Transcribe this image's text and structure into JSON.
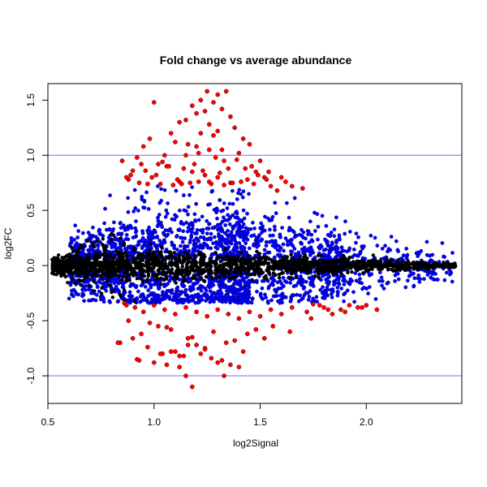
{
  "chart_data": {
    "type": "scatter",
    "title": "Fold change vs average abundance",
    "xlabel": "log2Signal",
    "ylabel": "log2FC",
    "xlim": [
      0.5,
      2.45
    ],
    "ylim": [
      -1.25,
      1.65
    ],
    "x_ticks": [
      "0.5",
      "1.0",
      "1.5",
      "2.0"
    ],
    "y_ticks": [
      "-1.0",
      "-0.5",
      "0.0",
      "0.5",
      "1.0",
      "1.5"
    ],
    "reference_lines": [
      1.0,
      -1.0
    ],
    "reference_line_color": "#6f6fff",
    "grid": false,
    "legend": "none",
    "series_colors": {
      "black": "#000000",
      "blue": "#0000ff",
      "red": "#ff0000"
    },
    "series": [
      {
        "color": "#ff0000",
        "x": [
          1.25,
          1.34,
          1.3,
          1.22,
          1.28,
          1.18,
          1.24,
          1.32,
          1.36,
          1.2,
          1.15,
          1.12,
          1.26,
          1.38,
          1.3,
          1.22,
          1.28,
          1.42,
          1.08,
          1.1,
          1.16,
          1.2,
          1.26,
          1.32,
          1.4,
          1.45,
          1.5,
          1.05,
          1.0,
          0.98,
          0.95,
          0.92,
          1.02,
          1.06,
          1.14,
          1.18,
          1.24,
          1.3,
          1.35,
          1.44,
          1.48,
          1.52,
          0.9,
          0.88,
          1.12,
          1.26,
          1.36,
          0.85,
          0.87,
          0.93,
          0.97,
          1.03,
          1.09,
          1.13,
          1.17,
          1.21,
          1.27,
          1.33,
          1.37,
          1.41,
          1.47,
          1.53,
          1.55,
          1.58,
          0.99,
          1.07,
          1.19,
          1.29,
          1.39,
          0.94,
          1.01,
          1.11,
          1.23,
          1.31,
          1.43,
          1.49,
          0.89,
          0.96,
          1.04,
          1.15,
          1.21,
          1.33,
          1.46,
          1.54,
          1.6,
          1.62,
          1.65,
          1.7,
          1.75,
          1.8,
          1.82,
          1.9,
          1.96,
          2.0,
          2.05,
          0.86,
          0.91,
          0.95,
          1.0,
          1.05,
          1.1,
          1.15,
          1.2,
          1.25,
          1.3,
          1.35,
          1.4,
          1.45,
          1.5,
          1.55,
          1.6,
          1.65,
          1.72,
          1.78,
          1.84,
          1.88,
          1.92,
          1.98,
          0.84,
          0.94,
          1.02,
          1.08,
          1.18,
          1.28,
          1.38,
          1.48,
          0.88,
          0.98,
          1.06,
          1.16,
          1.24,
          1.34,
          1.44,
          1.56,
          0.92,
          1.0,
          1.12,
          1.22,
          1.32,
          1.42,
          1.52,
          1.64,
          1.74,
          0.9,
          1.04,
          1.1,
          1.2,
          1.3,
          1.36,
          1.4,
          1.15,
          1.18,
          1.33,
          1.12,
          1.27,
          1.06,
          0.97,
          0.93,
          1.16,
          1.24,
          1.03,
          1.14,
          1.08,
          0.83,
          0.87
        ],
        "y": [
          1.58,
          1.58,
          1.55,
          1.5,
          1.48,
          1.45,
          1.4,
          1.42,
          1.35,
          1.38,
          1.32,
          1.3,
          1.28,
          1.25,
          1.22,
          1.2,
          1.18,
          1.15,
          1.2,
          1.12,
          1.1,
          1.08,
          1.05,
          1.05,
          1.02,
          1.1,
          0.95,
          1.0,
          1.48,
          1.15,
          1.08,
          0.98,
          0.92,
          0.9,
          0.88,
          0.85,
          0.82,
          0.8,
          0.88,
          0.78,
          0.85,
          0.8,
          0.86,
          0.78,
          0.76,
          0.76,
          0.75,
          0.95,
          0.8,
          0.75,
          0.74,
          0.74,
          0.73,
          0.74,
          0.75,
          0.76,
          0.74,
          0.73,
          0.75,
          0.76,
          0.74,
          0.78,
          0.72,
          0.68,
          0.8,
          0.9,
          0.92,
          0.98,
          0.96,
          0.92,
          0.82,
          0.78,
          0.86,
          0.84,
          0.88,
          0.82,
          0.82,
          0.86,
          0.94,
          1.0,
          1.02,
          0.95,
          0.9,
          0.85,
          0.8,
          0.76,
          0.72,
          0.7,
          -0.35,
          -0.38,
          -0.4,
          -0.42,
          -0.38,
          -0.36,
          -0.4,
          -0.34,
          -0.38,
          -0.42,
          -0.36,
          -0.4,
          -0.44,
          -0.38,
          -0.42,
          -0.46,
          -0.4,
          -0.44,
          -0.48,
          -0.42,
          -0.46,
          -0.4,
          -0.44,
          -0.38,
          -0.42,
          -0.36,
          -0.44,
          -0.4,
          -0.36,
          -0.38,
          -0.7,
          -0.62,
          -0.55,
          -0.58,
          -0.65,
          -0.6,
          -0.68,
          -0.58,
          -0.5,
          -0.52,
          -0.56,
          -0.72,
          -0.75,
          -0.7,
          -0.62,
          -0.55,
          -0.85,
          -0.88,
          -0.82,
          -0.8,
          -0.86,
          -0.78,
          -0.66,
          -0.6,
          -0.48,
          -0.66,
          -0.8,
          -0.78,
          -0.72,
          -0.88,
          -0.9,
          -0.92,
          -1.0,
          -1.1,
          -1.0,
          -0.92,
          -0.84,
          -0.9,
          -0.74,
          -0.86,
          -0.66,
          -0.76,
          -0.8,
          -0.82,
          -0.78,
          -0.7,
          -0.36
        ]
      }
    ]
  }
}
